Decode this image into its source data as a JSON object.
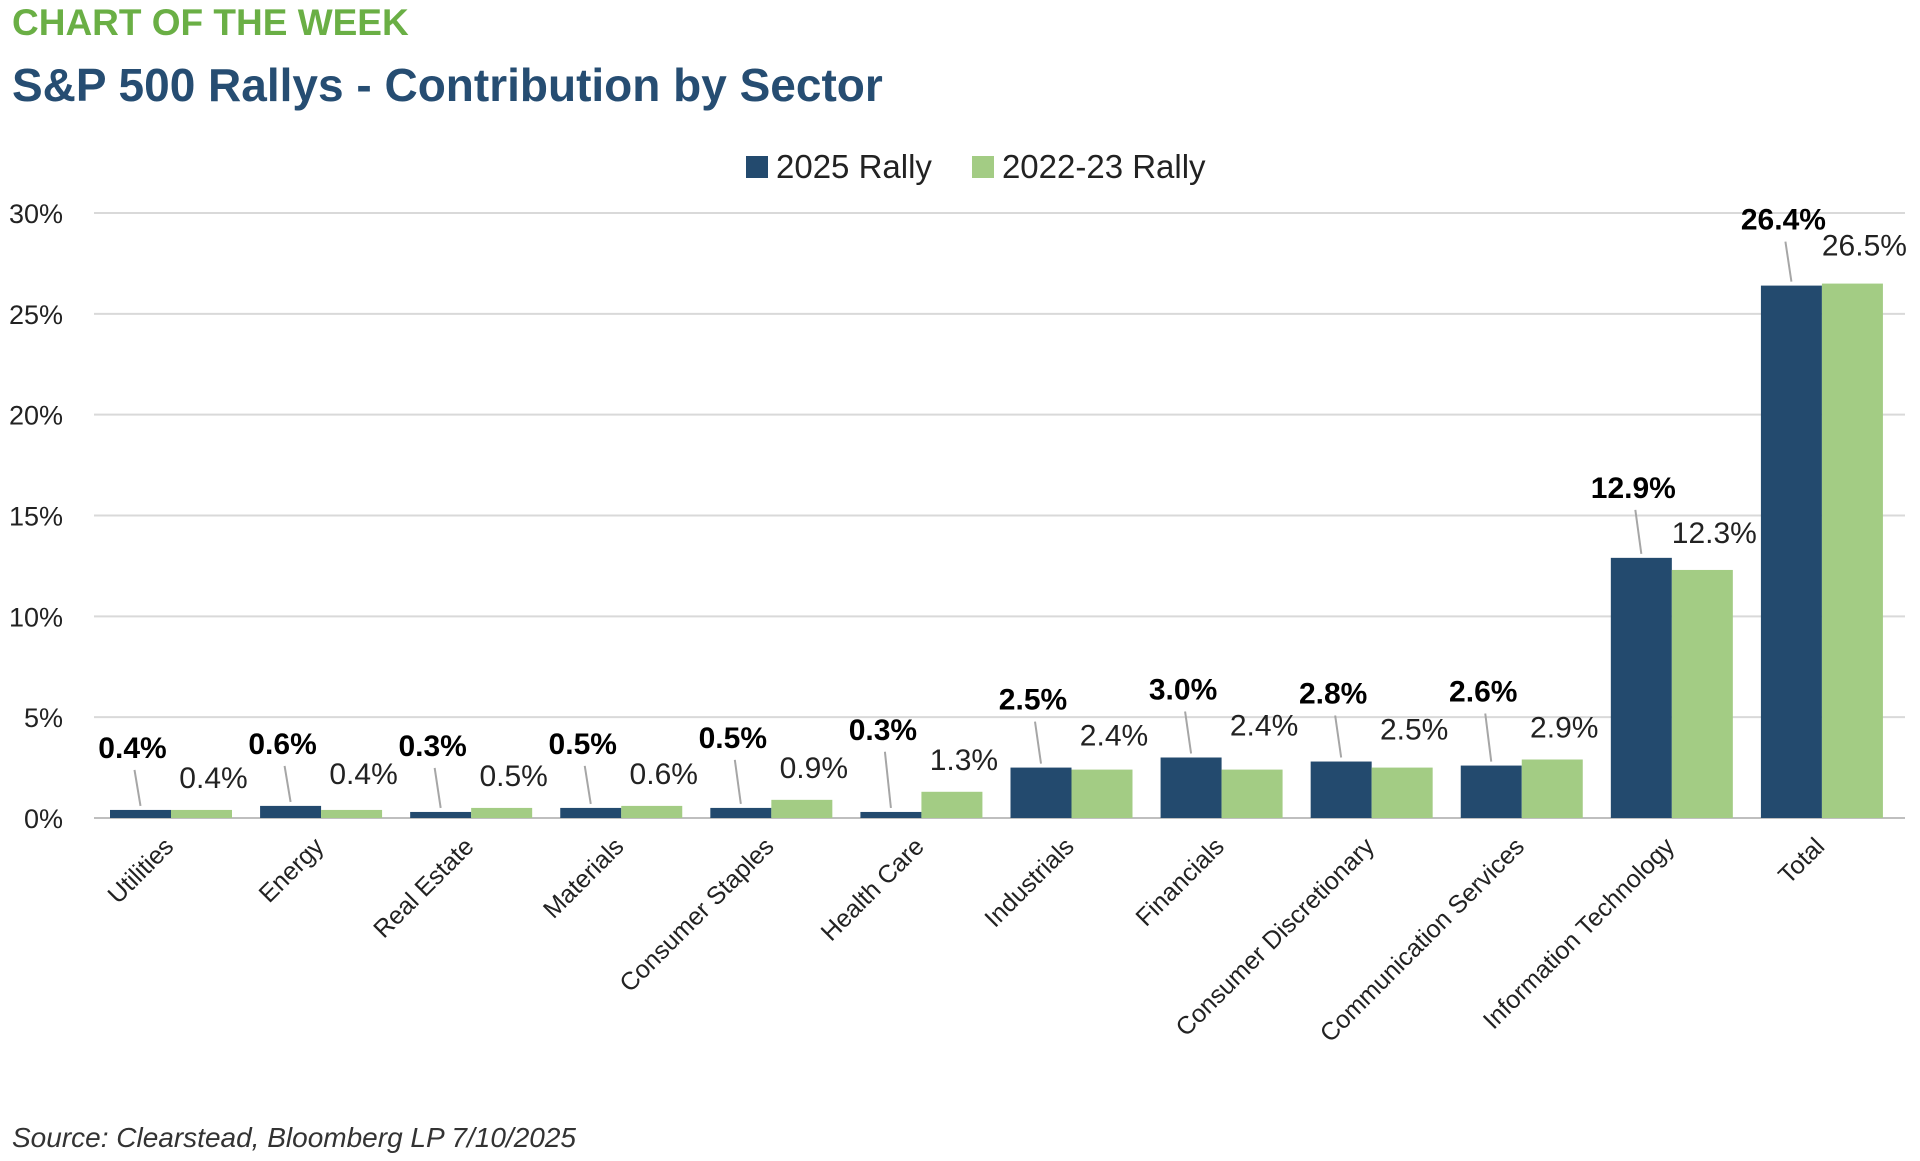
{
  "header": {
    "kicker": "CHART OF THE WEEK",
    "title": "S&P 500 Rallys - Contribution by Sector"
  },
  "footer": {
    "source": "Source: Clearstead, Bloomberg LP 7/10/2025"
  },
  "colors": {
    "series_2025": "#234a6e",
    "series_2022_23": "#a3cc84",
    "kicker": "#6aaf45",
    "title": "#264d72"
  },
  "chart_data": {
    "type": "bar",
    "title": "S&P 500 Rallys - Contribution by Sector",
    "xlabel": "",
    "ylabel": "",
    "ylim": [
      0,
      30
    ],
    "yticks": [
      "0%",
      "5%",
      "10%",
      "15%",
      "20%",
      "25%",
      "30%"
    ],
    "grid": true,
    "legend_position": "top-center",
    "categories": [
      "Utilities",
      "Energy",
      "Real Estate",
      "Materials",
      "Consumer Staples",
      "Health Care",
      "Industrials",
      "Financials",
      "Consumer Discretionary",
      "Communication Services",
      "Information Technology",
      "Total"
    ],
    "series": [
      {
        "name": "2025 Rally",
        "values": [
          0.4,
          0.6,
          0.3,
          0.5,
          0.5,
          0.3,
          2.5,
          3.0,
          2.8,
          2.6,
          12.9,
          26.4
        ],
        "labels": [
          "0.4%",
          "0.6%",
          "0.3%",
          "0.5%",
          "0.5%",
          "0.3%",
          "2.5%",
          "3.0%",
          "2.8%",
          "2.6%",
          "12.9%",
          "26.4%"
        ]
      },
      {
        "name": "2022-23 Rally",
        "values": [
          0.4,
          0.4,
          0.5,
          0.6,
          0.9,
          1.3,
          2.4,
          2.4,
          2.5,
          2.9,
          12.3,
          26.5
        ],
        "labels": [
          "0.4%",
          "0.4%",
          "0.5%",
          "0.6%",
          "0.9%",
          "1.3%",
          "2.4%",
          "2.4%",
          "2.5%",
          "2.9%",
          "12.3%",
          "26.5%"
        ]
      }
    ]
  }
}
